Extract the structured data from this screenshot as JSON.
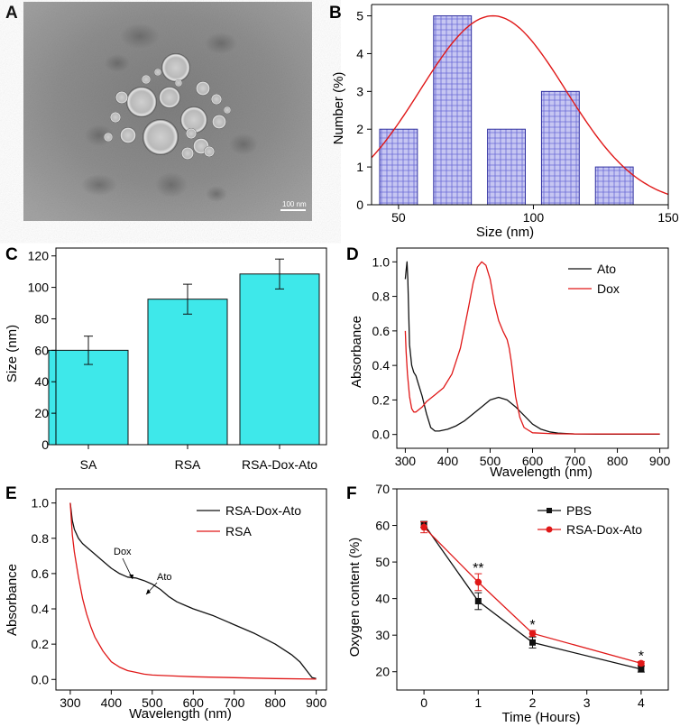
{
  "colors": {
    "bar_blue": "#c8c8f4",
    "bar_blue_edge": "#3030a0",
    "cyan": "#3ee8ea",
    "red": "#e01818",
    "black": "#111111"
  },
  "chart_data": [
    {
      "panel": "A",
      "type": "image",
      "label": "A",
      "scale_bar_label": "100 nm"
    },
    {
      "panel": "B",
      "type": "bar",
      "label": "B",
      "xlabel": "Size (nm)",
      "ylabel": "Number (%)",
      "xlim": [
        40,
        150
      ],
      "ylim": [
        0,
        5.3
      ],
      "xticks": [
        50,
        100,
        150
      ],
      "yticks": [
        0,
        1,
        2,
        3,
        4,
        5
      ],
      "bin_width": 14,
      "categories": [
        50,
        70,
        90,
        110,
        130
      ],
      "values": [
        2,
        5,
        2,
        3,
        1
      ],
      "fit": {
        "type": "gaussian",
        "mean": 85,
        "sd": 27,
        "peak": 5
      }
    },
    {
      "panel": "C",
      "type": "bar",
      "label": "C",
      "xlabel": "",
      "ylabel": "Size (nm)",
      "ylim": [
        0,
        125
      ],
      "yticks": [
        0,
        20,
        40,
        60,
        80,
        100,
        120
      ],
      "categories": [
        "SA",
        "RSA",
        "RSA-Dox-Ato"
      ],
      "values": [
        60,
        92.5,
        108.5
      ],
      "errors": [
        9,
        9.5,
        9.5
      ]
    },
    {
      "panel": "D",
      "type": "line",
      "label": "D",
      "xlabel": "Wavelength (nm)",
      "ylabel": "Absorbance",
      "xlim": [
        280,
        920
      ],
      "ylim": [
        -0.08,
        1.08
      ],
      "xticks": [
        300,
        400,
        500,
        600,
        700,
        800,
        900
      ],
      "yticks": [
        0.0,
        0.2,
        0.4,
        0.6,
        0.8,
        1.0
      ],
      "legend_position": "top-right",
      "series": [
        {
          "name": "Ato",
          "color": "#111111",
          "x": [
            300,
            302,
            304,
            306,
            308,
            310,
            315,
            320,
            325,
            330,
            340,
            350,
            360,
            370,
            380,
            400,
            420,
            440,
            460,
            480,
            500,
            520,
            540,
            560,
            580,
            600,
            620,
            640,
            660,
            680,
            700,
            750,
            800,
            850,
            900
          ],
          "y": [
            0.9,
            0.95,
            1.0,
            0.9,
            0.7,
            0.52,
            0.4,
            0.36,
            0.34,
            0.3,
            0.22,
            0.12,
            0.04,
            0.02,
            0.02,
            0.03,
            0.05,
            0.08,
            0.12,
            0.16,
            0.2,
            0.215,
            0.2,
            0.16,
            0.11,
            0.06,
            0.03,
            0.015,
            0.008,
            0.005,
            0.003,
            0.002,
            0.002,
            0.002,
            0.002
          ]
        },
        {
          "name": "Dox",
          "color": "#e01818",
          "x": [
            300,
            302,
            305,
            310,
            315,
            320,
            325,
            330,
            340,
            350,
            370,
            390,
            410,
            430,
            450,
            460,
            470,
            480,
            490,
            500,
            510,
            520,
            530,
            540,
            545,
            550,
            560,
            570,
            580,
            600,
            650,
            700,
            800,
            900
          ],
          "y": [
            0.6,
            0.48,
            0.35,
            0.22,
            0.15,
            0.13,
            0.13,
            0.14,
            0.16,
            0.19,
            0.23,
            0.27,
            0.35,
            0.5,
            0.75,
            0.88,
            0.97,
            1.0,
            0.98,
            0.9,
            0.76,
            0.66,
            0.6,
            0.55,
            0.5,
            0.42,
            0.22,
            0.1,
            0.04,
            0.01,
            0.004,
            0.003,
            0.003,
            0.003
          ]
        }
      ]
    },
    {
      "panel": "E",
      "type": "line",
      "label": "E",
      "xlabel": "Wavelength (nm)",
      "ylabel": "Absorbance",
      "xlim": [
        265,
        925
      ],
      "ylim": [
        -0.06,
        1.08
      ],
      "xticks": [
        300,
        400,
        500,
        600,
        700,
        800,
        900
      ],
      "yticks": [
        0.0,
        0.2,
        0.4,
        0.6,
        0.8,
        1.0
      ],
      "legend_position": "top-right",
      "annotations": [
        {
          "text": "Dox",
          "x": 470,
          "y": 0.575
        },
        {
          "text": "Ato",
          "x": 545,
          "y": 0.47
        }
      ],
      "series": [
        {
          "name": "RSA-Dox-Ato",
          "color": "#111111",
          "x": [
            300,
            305,
            310,
            320,
            330,
            340,
            360,
            380,
            400,
            420,
            440,
            460,
            480,
            500,
            520,
            540,
            560,
            580,
            600,
            650,
            700,
            750,
            800,
            840,
            860,
            880,
            890,
            900
          ],
          "y": [
            1.0,
            0.9,
            0.85,
            0.8,
            0.77,
            0.75,
            0.71,
            0.67,
            0.63,
            0.6,
            0.58,
            0.575,
            0.56,
            0.54,
            0.51,
            0.47,
            0.44,
            0.42,
            0.4,
            0.36,
            0.31,
            0.26,
            0.2,
            0.14,
            0.1,
            0.04,
            0.01,
            0.005
          ]
        },
        {
          "name": "RSA",
          "color": "#e01818",
          "x": [
            300,
            305,
            310,
            320,
            330,
            340,
            350,
            360,
            380,
            400,
            420,
            440,
            460,
            480,
            500,
            550,
            600,
            700,
            800,
            900
          ],
          "y": [
            1.0,
            0.82,
            0.72,
            0.58,
            0.46,
            0.37,
            0.3,
            0.24,
            0.16,
            0.1,
            0.07,
            0.05,
            0.04,
            0.03,
            0.025,
            0.02,
            0.015,
            0.01,
            0.005,
            0.002
          ]
        }
      ]
    },
    {
      "panel": "F",
      "type": "line",
      "label": "F",
      "xlabel": "Time (Hours)",
      "ylabel": "Oxygen content (%)",
      "xlim": [
        -0.5,
        4.5
      ],
      "ylim": [
        15,
        70
      ],
      "xticks": [
        0,
        1,
        2,
        3,
        4
      ],
      "yticks": [
        20,
        30,
        40,
        50,
        60,
        70
      ],
      "legend_position": "top-right",
      "annotations": [
        {
          "text": "**",
          "x": 1,
          "y": 49
        },
        {
          "text": "*",
          "x": 2,
          "y": 33.5
        },
        {
          "text": "*",
          "x": 4,
          "y": 25
        }
      ],
      "series": [
        {
          "name": "PBS",
          "color": "#111111",
          "marker": "square",
          "x": [
            0,
            1,
            2,
            4
          ],
          "y": [
            60.3,
            39.3,
            28,
            20.7
          ],
          "err": [
            0.8,
            2.3,
            1.5,
            0.8
          ]
        },
        {
          "name": "RSA-Dox-Ato",
          "color": "#e01818",
          "marker": "circle",
          "x": [
            0,
            1,
            2,
            4
          ],
          "y": [
            59.5,
            44.5,
            30.5,
            22.3
          ],
          "err": [
            1.5,
            2.3,
            0.8,
            0.5
          ]
        }
      ]
    }
  ]
}
